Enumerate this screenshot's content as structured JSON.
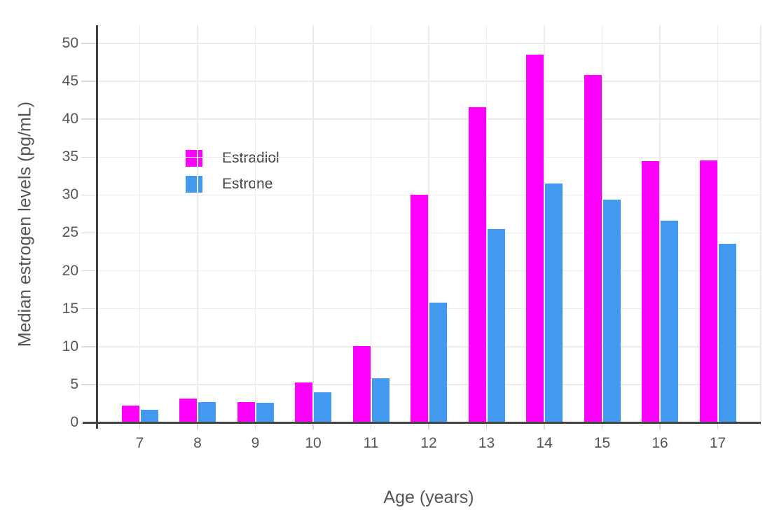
{
  "chart_data": {
    "type": "bar",
    "title": "",
    "xlabel": "Age (years)",
    "ylabel": "Median estrogen levels (pg/mL)",
    "categories": [
      7,
      8,
      9,
      10,
      11,
      12,
      13,
      14,
      15,
      16,
      17
    ],
    "series": [
      {
        "name": "Estradiol",
        "color": "#FF00FF",
        "values": [
          2.2,
          3.1,
          2.7,
          5.3,
          10.1,
          30.0,
          41.6,
          48.5,
          45.8,
          34.5,
          34.6
        ]
      },
      {
        "name": "Estrone",
        "color": "#4299F0",
        "values": [
          1.7,
          2.7,
          2.6,
          4.0,
          5.8,
          15.8,
          25.5,
          31.5,
          29.4,
          26.6,
          23.6
        ]
      }
    ],
    "ylim": [
      0,
      52.4
    ],
    "yticks": [
      0,
      5,
      10,
      15,
      20,
      25,
      30,
      35,
      40,
      45,
      50
    ],
    "grid": true,
    "legend_position": "inside-top-left"
  },
  "style": {
    "background": "#ffffff",
    "axis_color": "#444444",
    "grid_color": "#ebebeb",
    "tick_color": "#d9d9d9",
    "text_color": "#555555",
    "legend_text_color": "#444444"
  }
}
